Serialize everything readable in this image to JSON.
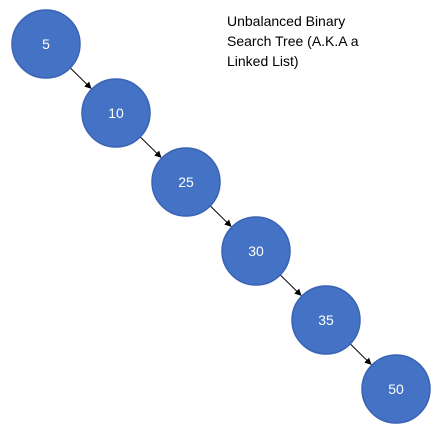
{
  "caption": {
    "lines": [
      "Unbalanced Binary",
      "Search Tree (A.K.A a",
      "Linked List)"
    ]
  },
  "tree": {
    "nodes": [
      {
        "id": "n5",
        "label": "5"
      },
      {
        "id": "n10",
        "label": "10"
      },
      {
        "id": "n25",
        "label": "25"
      },
      {
        "id": "n30",
        "label": "30"
      },
      {
        "id": "n35",
        "label": "35"
      },
      {
        "id": "n50",
        "label": "50"
      }
    ],
    "edges": [
      {
        "from": "n5",
        "to": "n10"
      },
      {
        "from": "n10",
        "to": "n25"
      },
      {
        "from": "n25",
        "to": "n30"
      },
      {
        "from": "n30",
        "to": "n35"
      },
      {
        "from": "n35",
        "to": "n50"
      }
    ]
  },
  "colors": {
    "node_fill": "#4472c4",
    "node_text": "#ffffff",
    "edge": "#000000"
  }
}
